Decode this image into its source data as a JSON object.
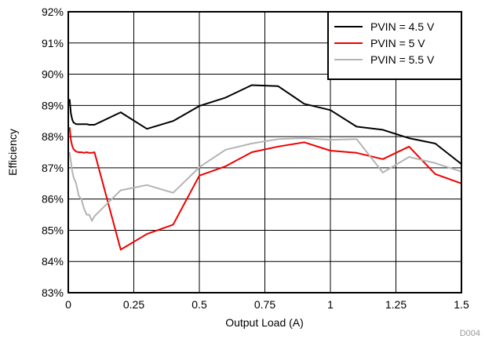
{
  "chart_data": {
    "type": "line",
    "title": "",
    "xlabel": "Output Load (A)",
    "ylabel": "Efficiency",
    "xlim": [
      0,
      1.5
    ],
    "ylim": [
      83,
      92
    ],
    "x_ticks": [
      "0",
      "0.25",
      "0.5",
      "0.75",
      "1",
      "1.25",
      "1.5"
    ],
    "y_ticks": [
      "83%",
      "84%",
      "85%",
      "86%",
      "87%",
      "88%",
      "89%",
      "90%",
      "91%",
      "92%"
    ],
    "grid": true,
    "legend_position": "top-right",
    "figure_code": "D004",
    "series": [
      {
        "name": "PVIN = 4.5 V",
        "color": "#000000",
        "x": [
          0.005,
          0.01,
          0.015,
          0.02,
          0.03,
          0.04,
          0.05,
          0.06,
          0.07,
          0.08,
          0.1,
          0.2,
          0.3,
          0.4,
          0.5,
          0.6,
          0.7,
          0.8,
          0.9,
          1.0,
          1.1,
          1.2,
          1.3,
          1.4,
          1.5
        ],
        "y": [
          89.2,
          88.75,
          88.55,
          88.45,
          88.4,
          88.4,
          88.4,
          88.4,
          88.4,
          88.38,
          88.38,
          88.78,
          88.25,
          88.5,
          88.98,
          89.25,
          89.65,
          89.62,
          89.05,
          88.85,
          88.32,
          88.22,
          87.95,
          87.78,
          87.12
        ]
      },
      {
        "name": "PVIN = 5 V",
        "color": "#ee0000",
        "x": [
          0.005,
          0.01,
          0.015,
          0.02,
          0.03,
          0.04,
          0.05,
          0.06,
          0.07,
          0.08,
          0.09,
          0.1,
          0.2,
          0.3,
          0.4,
          0.5,
          0.6,
          0.7,
          0.8,
          0.9,
          1.0,
          1.1,
          1.2,
          1.3,
          1.4,
          1.5
        ],
        "y": [
          88.3,
          87.9,
          87.7,
          87.6,
          87.52,
          87.5,
          87.5,
          87.48,
          87.5,
          87.48,
          87.48,
          87.5,
          84.38,
          84.88,
          85.18,
          86.75,
          87.05,
          87.5,
          87.68,
          87.82,
          87.55,
          87.48,
          87.28,
          87.68,
          86.8,
          86.5
        ]
      },
      {
        "name": "PVIN = 5.5 V",
        "color": "#b4b4b4",
        "x": [
          0.005,
          0.01,
          0.015,
          0.02,
          0.03,
          0.04,
          0.05,
          0.06,
          0.07,
          0.08,
          0.09,
          0.1,
          0.2,
          0.3,
          0.4,
          0.5,
          0.6,
          0.7,
          0.8,
          0.9,
          1.0,
          1.1,
          1.2,
          1.3,
          1.4,
          1.5
        ],
        "y": [
          87.5,
          87.2,
          86.9,
          86.7,
          86.5,
          86.1,
          86.0,
          85.7,
          85.5,
          85.5,
          85.3,
          85.45,
          86.28,
          86.45,
          86.2,
          87.02,
          87.58,
          87.78,
          87.92,
          87.95,
          87.9,
          87.92,
          86.85,
          87.35,
          87.15,
          86.88
        ]
      }
    ]
  }
}
